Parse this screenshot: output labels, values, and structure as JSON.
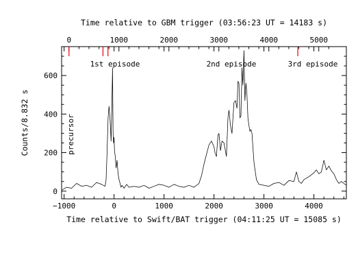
{
  "chart_data": {
    "type": "line",
    "bottom_axis": {
      "label": "Time relative to Swift/BAT trigger (04:11:25 UT = 15085 s)",
      "range": [
        -1050,
        4650
      ],
      "ticks": [
        -1000,
        0,
        1000,
        2000,
        3000,
        4000
      ],
      "tick_labels": [
        "−1000",
        "0",
        "1000",
        "2000",
        "3000",
        "4000"
      ]
    },
    "top_axis": {
      "label": "Time relative to GBM trigger (03:56:23 UT = 14183 s)",
      "offset_s": 902,
      "ticks": [
        0,
        1000,
        2000,
        3000,
        4000,
        5000
      ],
      "tick_labels": [
        "0",
        "1000",
        "2000",
        "3000",
        "4000",
        "5000"
      ]
    },
    "y_axis": {
      "label": "Counts/8.832 s",
      "range": [
        -40,
        750
      ],
      "ticks": [
        0,
        200,
        400,
        600
      ],
      "tick_labels": [
        "0",
        "200",
        "400",
        "600"
      ]
    },
    "markers_top_axis": [
      0,
      680,
      780,
      4580
    ],
    "marker_color": "#e8000b",
    "line_color": "#000000",
    "annotations": {
      "episode1": "1st episode",
      "episode2": "2nd episode",
      "episode3": "3rd episode",
      "precursor": "precursor"
    },
    "series": [
      {
        "x": [
          -1050,
          -950,
          -850,
          -750,
          -650,
          -550,
          -450,
          -350,
          -250,
          -180,
          -160,
          -140,
          -120,
          -100,
          -80,
          -60,
          -45,
          -30,
          -20,
          -10,
          0,
          10,
          20,
          40,
          60,
          80,
          100,
          120,
          140,
          160,
          200,
          250,
          300,
          400,
          500,
          600,
          700,
          800,
          900,
          1000,
          1100,
          1200,
          1300,
          1400,
          1500,
          1600,
          1700,
          1750,
          1800,
          1850,
          1900,
          1950,
          2000,
          2020,
          2050,
          2080,
          2100,
          2130,
          2160,
          2200,
          2250,
          2280,
          2300,
          2330,
          2360,
          2400,
          2430,
          2460,
          2480,
          2500,
          2520,
          2540,
          2560,
          2580,
          2600,
          2620,
          2640,
          2660,
          2680,
          2700,
          2720,
          2740,
          2760,
          2800,
          2850,
          2900,
          3000,
          3100,
          3200,
          3300,
          3400,
          3500,
          3600,
          3650,
          3700,
          3750,
          3800,
          3900,
          4000,
          4050,
          4100,
          4150,
          4200,
          4250,
          4300,
          4350,
          4400,
          4450,
          4500,
          4550,
          4600,
          4650
        ],
        "y": [
          5,
          20,
          15,
          40,
          25,
          30,
          20,
          45,
          35,
          25,
          60,
          200,
          380,
          440,
          370,
          260,
          420,
          640,
          300,
          250,
          280,
          200,
          190,
          120,
          160,
          90,
          60,
          40,
          20,
          30,
          15,
          35,
          20,
          25,
          20,
          30,
          15,
          25,
          35,
          30,
          20,
          35,
          25,
          20,
          30,
          20,
          40,
          80,
          140,
          190,
          240,
          260,
          230,
          200,
          180,
          290,
          300,
          210,
          260,
          250,
          180,
          380,
          420,
          340,
          300,
          460,
          470,
          430,
          570,
          560,
          380,
          390,
          640,
          550,
          730,
          470,
          560,
          500,
          380,
          340,
          310,
          320,
          300,
          150,
          60,
          35,
          30,
          25,
          40,
          45,
          30,
          55,
          50,
          100,
          50,
          40,
          60,
          75,
          95,
          110,
          90,
          100,
          160,
          110,
          130,
          105,
          90,
          60,
          40,
          50,
          40,
          30
        ]
      }
    ]
  }
}
